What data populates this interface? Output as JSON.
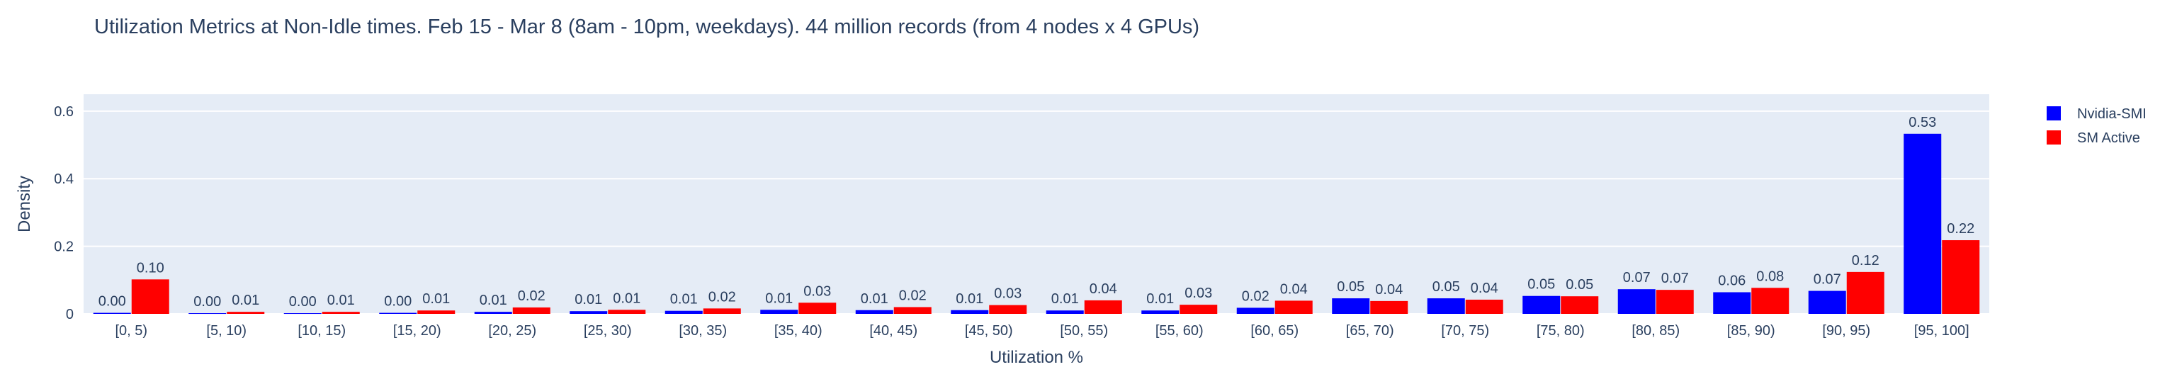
{
  "chart_data": {
    "type": "bar",
    "title": "Utilization Metrics at Non-Idle times. Feb 15 - Mar 8 (8am - 10pm, weekdays). 44 million records (from 4 nodes x 4 GPUs)",
    "xlabel": "Utilization %",
    "ylabel": "Density",
    "ylim": [
      0,
      0.65
    ],
    "yticks": [
      0,
      0.2,
      0.4,
      0.6
    ],
    "ytick_labels": [
      "0",
      "0.2",
      "0.4",
      "0.6"
    ],
    "grid": true,
    "legend_position": "top-right, outside plot",
    "categories": [
      "[0, 5)",
      "[5, 10)",
      "[10, 15)",
      "[15, 20)",
      "[20, 25)",
      "[25, 30)",
      "[30, 35)",
      "[35, 40)",
      "[40, 45)",
      "[45, 50)",
      "[50, 55)",
      "[55, 60)",
      "[60, 65)",
      "[65, 70)",
      "[70, 75)",
      "[75, 80)",
      "[80, 85)",
      "[85, 90)",
      "[90, 95)",
      "[95, 100]"
    ],
    "series": [
      {
        "name": "Nvidia-SMI",
        "color": "#0000ff",
        "values": [
          0.003,
          0.002,
          0.002,
          0.003,
          0.006,
          0.008,
          0.009,
          0.012,
          0.011,
          0.011,
          0.01,
          0.01,
          0.018,
          0.046,
          0.046,
          0.053,
          0.073,
          0.064,
          0.068,
          0.533
        ],
        "labels": [
          "0.00",
          "0.00",
          "0.00",
          "0.00",
          "0.01",
          "0.01",
          "0.01",
          "0.01",
          "0.01",
          "0.01",
          "0.01",
          "0.01",
          "0.02",
          "0.05",
          "0.05",
          "0.05",
          "0.07",
          "0.06",
          "0.07",
          "0.53"
        ]
      },
      {
        "name": "SM Active",
        "color": "#ff0000",
        "values": [
          0.102,
          0.006,
          0.006,
          0.01,
          0.019,
          0.012,
          0.016,
          0.033,
          0.02,
          0.026,
          0.04,
          0.027,
          0.039,
          0.038,
          0.042,
          0.052,
          0.071,
          0.077,
          0.124,
          0.218
        ],
        "labels": [
          "0.10",
          "0.01",
          "0.01",
          "0.01",
          "0.02",
          "0.01",
          "0.02",
          "0.03",
          "0.02",
          "0.03",
          "0.04",
          "0.03",
          "0.04",
          "0.04",
          "0.04",
          "0.05",
          "0.07",
          "0.08",
          "0.12",
          "0.22"
        ]
      }
    ]
  }
}
